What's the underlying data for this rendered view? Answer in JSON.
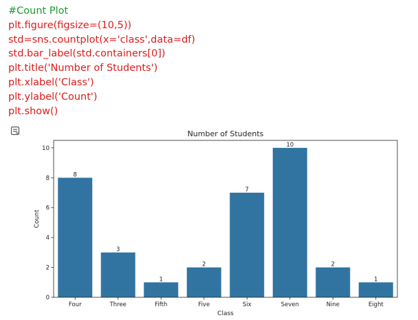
{
  "code": {
    "comment": "#Count Plot",
    "lines": [
      "plt.figure(figsize=(10,5))",
      "std=sns.countplot(x='class',data=df)",
      "std.bar_label(std.containers[0])",
      "plt.title('Number of Students')",
      "plt.xlabel('Class')",
      "plt.ylabel('Count')",
      "plt.show()"
    ]
  },
  "output_icon": "output-toggle-icon",
  "colors": {
    "bar": "#3274a1",
    "comment": "#1a9a2e",
    "code": "#dd1b1b"
  },
  "chart_data": {
    "type": "bar",
    "title": "Number of Students",
    "xlabel": "Class",
    "ylabel": "Count",
    "categories": [
      "Four",
      "Three",
      "Fifth",
      "Five",
      "Six",
      "Seven",
      "Nine",
      "Eight"
    ],
    "values": [
      8,
      3,
      1,
      2,
      7,
      10,
      2,
      1
    ],
    "data_labels": [
      "8",
      "3",
      "1",
      "2",
      "7",
      "10",
      "2",
      "1"
    ],
    "ylim": [
      0,
      10.5
    ],
    "yticks": [
      0,
      2,
      4,
      6,
      8,
      10
    ],
    "grid": false,
    "legend": "none"
  }
}
